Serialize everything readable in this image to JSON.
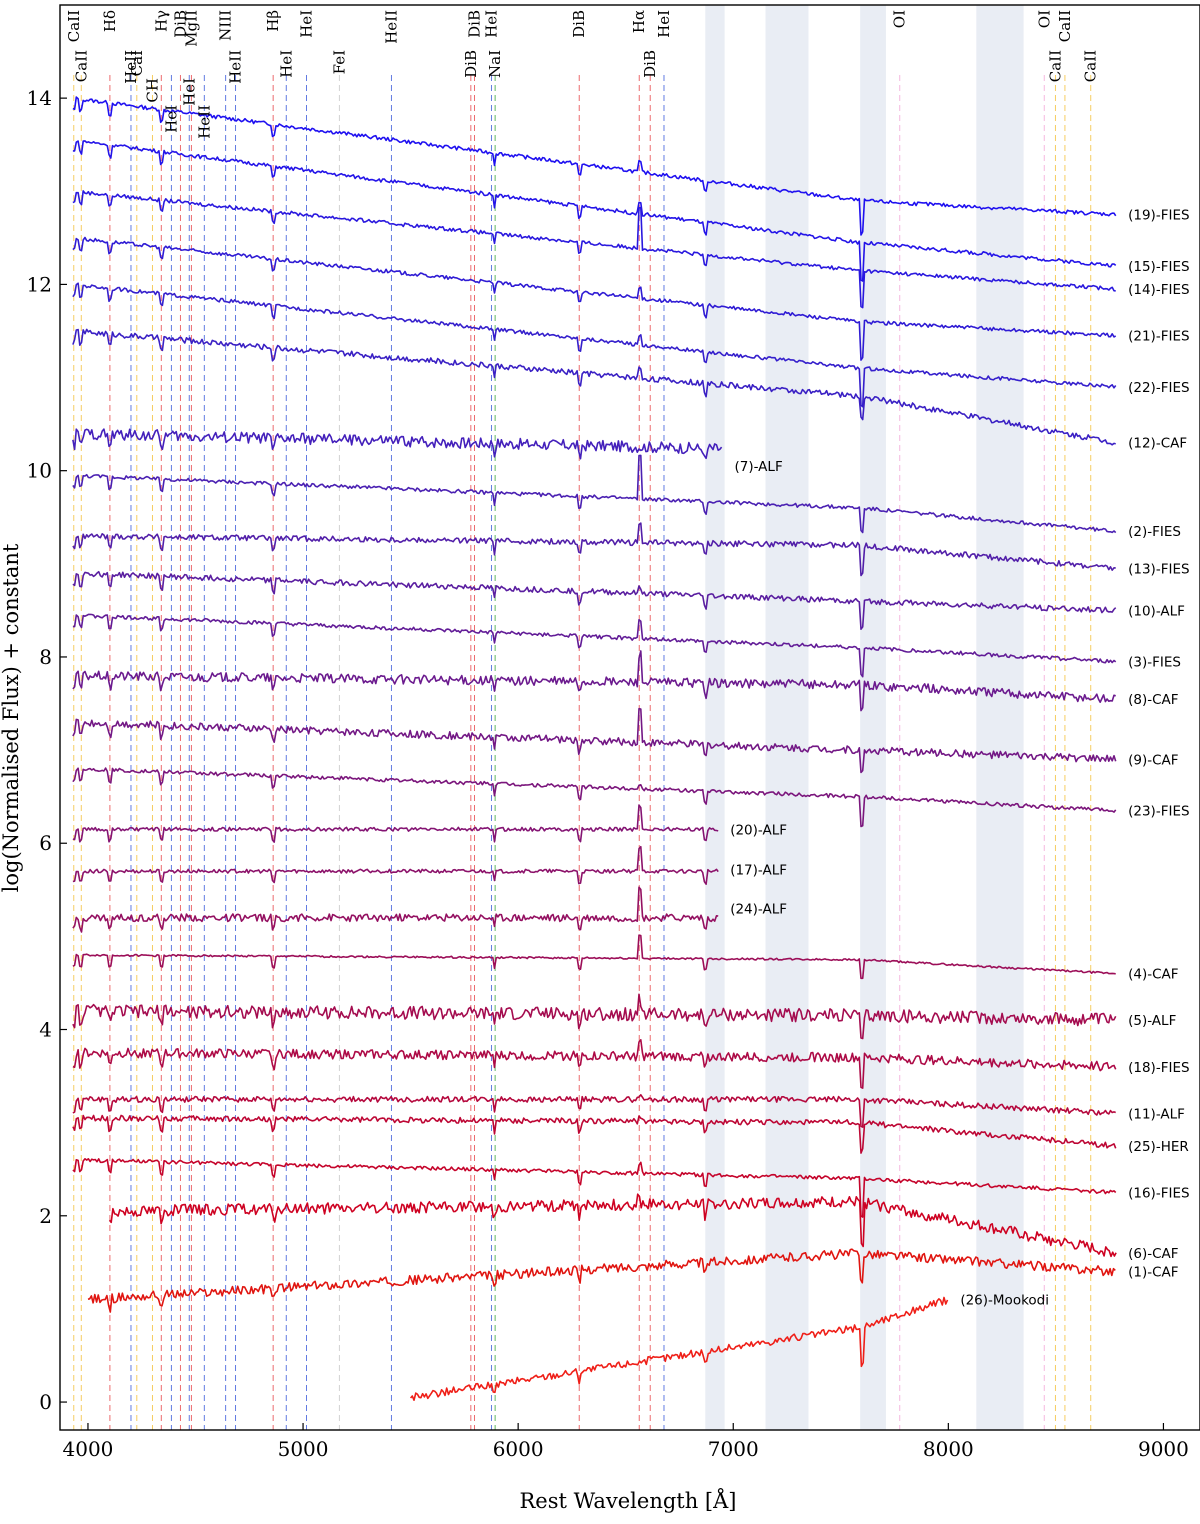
{
  "chart_data": {
    "type": "line",
    "xlabel": "Rest Wavelength [Å]",
    "ylabel": "log(Normalised Flux) + constant",
    "xlim": [
      3870,
      9170
    ],
    "ylim": [
      -0.3,
      15.0
    ],
    "x_ticks": [
      4000,
      5000,
      6000,
      7000,
      8000,
      9000
    ],
    "y_ticks": [
      0,
      2,
      4,
      6,
      8,
      10,
      12,
      14
    ],
    "telluric_bands": [
      [
        6870,
        6960
      ],
      [
        7150,
        7350
      ],
      [
        7590,
        7710
      ],
      [
        8130,
        8350
      ]
    ],
    "lines": [
      {
        "label": "CaII",
        "wavelength": 3934,
        "color": "#f5c13b",
        "row": 0
      },
      {
        "label": "CaII",
        "wavelength": 3969,
        "color": "#f5c13b",
        "row": 1
      },
      {
        "label": "Hδ",
        "wavelength": 4102,
        "color": "#e8474a",
        "row": 0
      },
      {
        "label": "HeII",
        "wavelength": 4200,
        "color": "#3b5bdb",
        "row": 1
      },
      {
        "label": "CaI",
        "wavelength": 4227,
        "color": "#f5c13b",
        "row": 1
      },
      {
        "label": "CH",
        "wavelength": 4300,
        "color": "#f5c13b",
        "row": 2
      },
      {
        "label": "Hγ",
        "wavelength": 4341,
        "color": "#e8474a",
        "row": 0
      },
      {
        "label": "HeI",
        "wavelength": 4388,
        "color": "#3b5bdb",
        "row": 3
      },
      {
        "label": "DiB",
        "wavelength": 4430,
        "color": "#e8474a",
        "row": 0
      },
      {
        "label": "HeI",
        "wavelength": 4471,
        "color": "#3b5bdb",
        "row": 2
      },
      {
        "label": "MgII",
        "wavelength": 4481,
        "color": "#e8474a",
        "row": 0
      },
      {
        "label": "HeII",
        "wavelength": 4541,
        "color": "#3b5bdb",
        "row": 3
      },
      {
        "label": "NIII",
        "wavelength": 4640,
        "color": "#3b5bdb",
        "row": 0
      },
      {
        "label": "HeII",
        "wavelength": 4686,
        "color": "#3b5bdb",
        "row": 1
      },
      {
        "label": "Hβ",
        "wavelength": 4861,
        "color": "#e8474a",
        "row": 0
      },
      {
        "label": "HeI",
        "wavelength": 4922,
        "color": "#3b5bdb",
        "row": 1
      },
      {
        "label": "HeI",
        "wavelength": 5016,
        "color": "#3b5bdb",
        "row": 0
      },
      {
        "label": "FeI",
        "wavelength": 5169,
        "color": "#c8c8c8",
        "row": 1
      },
      {
        "label": "HeII",
        "wavelength": 5411,
        "color": "#3b5bdb",
        "row": 0
      },
      {
        "label": "DiB",
        "wavelength": 5780,
        "color": "#e8474a",
        "row": 1
      },
      {
        "label": "DiB",
        "wavelength": 5797,
        "color": "#e8474a",
        "row": 0
      },
      {
        "label": "HeI",
        "wavelength": 5876,
        "color": "#3b5bdb",
        "row": 0
      },
      {
        "label": "NaI",
        "wavelength": 5893,
        "color": "#3aa63a",
        "row": 1
      },
      {
        "label": "DiB",
        "wavelength": 6284,
        "color": "#e8474a",
        "row": 0
      },
      {
        "label": "Hα",
        "wavelength": 6563,
        "color": "#e8474a",
        "row": 0
      },
      {
        "label": "DiB",
        "wavelength": 6614,
        "color": "#e8474a",
        "row": 1
      },
      {
        "label": "HeI",
        "wavelength": 6678,
        "color": "#3b5bdb",
        "row": 0
      },
      {
        "label": "OI",
        "wavelength": 7774,
        "color": "#f3a6d8",
        "row": 0
      },
      {
        "label": "OI",
        "wavelength": 8446,
        "color": "#f3a6d8",
        "row": 0
      },
      {
        "label": "CaII",
        "wavelength": 8498,
        "color": "#f5c13b",
        "row": 1
      },
      {
        "label": "CaII",
        "wavelength": 8542,
        "color": "#f5c13b",
        "row": 0
      },
      {
        "label": "CaII",
        "wavelength": 8662,
        "color": "#f5c13b",
        "row": 1
      }
    ],
    "series": [
      {
        "name": "(19)-FIES",
        "x_start": 3930,
        "x_end": 8780,
        "start": 14.0,
        "mid": 12.9,
        "end": 12.75,
        "jump": 0.35,
        "color": "#1f10f0",
        "emission": 0.1,
        "noise": 0.02
      },
      {
        "name": "(15)-FIES",
        "x_start": 3930,
        "x_end": 8780,
        "start": 13.55,
        "mid": 12.45,
        "end": 12.2,
        "jump": 0.4,
        "color": "#2414e8",
        "emission": 0.12,
        "noise": 0.02
      },
      {
        "name": "(14)-FIES",
        "x_start": 3930,
        "x_end": 8780,
        "start": 13.0,
        "mid": 12.15,
        "end": 11.95,
        "jump": 0.4,
        "color": "#2a18de",
        "emission": 0.45,
        "noise": 0.02
      },
      {
        "name": "(21)-FIES",
        "x_start": 3930,
        "x_end": 8780,
        "start": 12.5,
        "mid": 11.6,
        "end": 11.45,
        "jump": 0.4,
        "color": "#2f1bd4",
        "emission": 0.1,
        "noise": 0.02
      },
      {
        "name": "(22)-FIES",
        "x_start": 3930,
        "x_end": 8780,
        "start": 12.0,
        "mid": 11.1,
        "end": 10.9,
        "jump": 0.4,
        "color": "#351fcc",
        "emission": 0.1,
        "noise": 0.02
      },
      {
        "name": "(12)-CAF",
        "x_start": 3930,
        "x_end": 8780,
        "start": 11.5,
        "mid": 10.8,
        "end": 10.3,
        "jump": 0.25,
        "color": "#3a20c4",
        "emission": 0.1,
        "noise": 0.03
      },
      {
        "name": "(7)-ALF",
        "x_start": 3930,
        "x_end": 6950,
        "start": 10.4,
        "mid": 10.2,
        "end": 10.05,
        "jump": 0,
        "color": "#4420bb",
        "emission": 0,
        "noise": 0.06
      },
      {
        "name": "(2)-FIES",
        "x_start": 3930,
        "x_end": 8780,
        "start": 9.95,
        "mid": 9.6,
        "end": 9.35,
        "jump": 0.25,
        "color": "#4a20b2",
        "emission": 0.45,
        "noise": 0.02
      },
      {
        "name": "(13)-FIES",
        "x_start": 3930,
        "x_end": 8780,
        "start": 9.3,
        "mid": 9.2,
        "end": 8.95,
        "jump": 0.3,
        "color": "#521fa9",
        "emission": 0.2,
        "noise": 0.03
      },
      {
        "name": "(10)-ALF",
        "x_start": 3930,
        "x_end": 8780,
        "start": 8.9,
        "mid": 8.6,
        "end": 8.5,
        "jump": 0.3,
        "color": "#5a1ea0",
        "emission": 0.05,
        "noise": 0.03
      },
      {
        "name": "(3)-FIES",
        "x_start": 3930,
        "x_end": 8780,
        "start": 8.45,
        "mid": 8.1,
        "end": 7.95,
        "jump": 0.3,
        "color": "#621c97",
        "emission": 0.2,
        "noise": 0.02
      },
      {
        "name": "(8)-CAF",
        "x_start": 3930,
        "x_end": 8780,
        "start": 7.8,
        "mid": 7.7,
        "end": 7.55,
        "jump": 0.25,
        "color": "#6b1a8e",
        "emission": 0.3,
        "noise": 0.05
      },
      {
        "name": "(9)-CAF",
        "x_start": 3930,
        "x_end": 8780,
        "start": 7.3,
        "mid": 7.0,
        "end": 6.9,
        "jump": 0.25,
        "color": "#731885",
        "emission": 0.35,
        "noise": 0.04
      },
      {
        "name": "(23)-FIES",
        "x_start": 3930,
        "x_end": 8780,
        "start": 6.8,
        "mid": 6.5,
        "end": 6.35,
        "jump": 0.3,
        "color": "#7b167c",
        "emission": 0.05,
        "noise": 0.02
      },
      {
        "name": "(20)-ALF",
        "x_start": 3930,
        "x_end": 6930,
        "start": 6.15,
        "mid": 6.15,
        "end": 6.15,
        "jump": 0,
        "color": "#841473",
        "emission": 0.25,
        "noise": 0.02
      },
      {
        "name": "(17)-ALF",
        "x_start": 3930,
        "x_end": 6930,
        "start": 5.7,
        "mid": 5.7,
        "end": 5.72,
        "jump": 0,
        "color": "#8c126a",
        "emission": 0.25,
        "noise": 0.02
      },
      {
        "name": "(24)-ALF",
        "x_start": 3930,
        "x_end": 6930,
        "start": 5.2,
        "mid": 5.2,
        "end": 5.3,
        "jump": 0,
        "color": "#941061",
        "emission": 0.3,
        "noise": 0.04
      },
      {
        "name": "(4)-CAF",
        "x_start": 3930,
        "x_end": 8780,
        "start": 4.8,
        "mid": 4.75,
        "end": 4.6,
        "jump": 0.2,
        "color": "#9c0e58",
        "emission": 0.25,
        "noise": 0.01
      },
      {
        "name": "(5)-ALF",
        "x_start": 3930,
        "x_end": 8780,
        "start": 4.2,
        "mid": 4.15,
        "end": 4.1,
        "jump": 0.3,
        "color": "#a40c4f",
        "emission": 0.15,
        "noise": 0.07
      },
      {
        "name": "(18)-FIES",
        "x_start": 3930,
        "x_end": 8780,
        "start": 3.75,
        "mid": 3.7,
        "end": 3.6,
        "jump": 0.3,
        "color": "#ad0a46",
        "emission": 0.15,
        "noise": 0.05
      },
      {
        "name": "(11)-ALF",
        "x_start": 3930,
        "x_end": 8780,
        "start": 3.25,
        "mid": 3.25,
        "end": 3.1,
        "jump": 0.3,
        "color": "#b5083d",
        "emission": 0.05,
        "noise": 0.03
      },
      {
        "name": "(25)-HER",
        "x_start": 3930,
        "x_end": 8780,
        "start": 3.05,
        "mid": 3.0,
        "end": 2.75,
        "jump": 0.3,
        "color": "#bd0634",
        "emission": 0.05,
        "noise": 0.03
      },
      {
        "name": "(16)-FIES",
        "x_start": 3930,
        "x_end": 8780,
        "start": 2.6,
        "mid": 2.4,
        "end": 2.25,
        "jump": 0.4,
        "color": "#c5042b",
        "emission": 0.1,
        "noise": 0.02
      },
      {
        "name": "(6)-CAF",
        "x_start": 4100,
        "x_end": 8780,
        "start": 2.05,
        "mid": 2.15,
        "end": 1.6,
        "jump": 0.5,
        "color": "#ce0222",
        "emission": 0.1,
        "noise": 0.06
      },
      {
        "name": "(1)-CAF",
        "x_start": 4000,
        "x_end": 8780,
        "start": 1.1,
        "mid": 1.6,
        "end": 1.4,
        "jump": 0.3,
        "color": "#e01510",
        "emission": 0,
        "noise": 0.05
      },
      {
        "name": "(26)-Mookodi",
        "x_start": 5500,
        "x_end": 8000,
        "start": 0.05,
        "mid": 0.8,
        "end": 1.1,
        "jump": 0.4,
        "color": "#ef1f18",
        "emission": 0,
        "noise": 0.04
      }
    ]
  }
}
